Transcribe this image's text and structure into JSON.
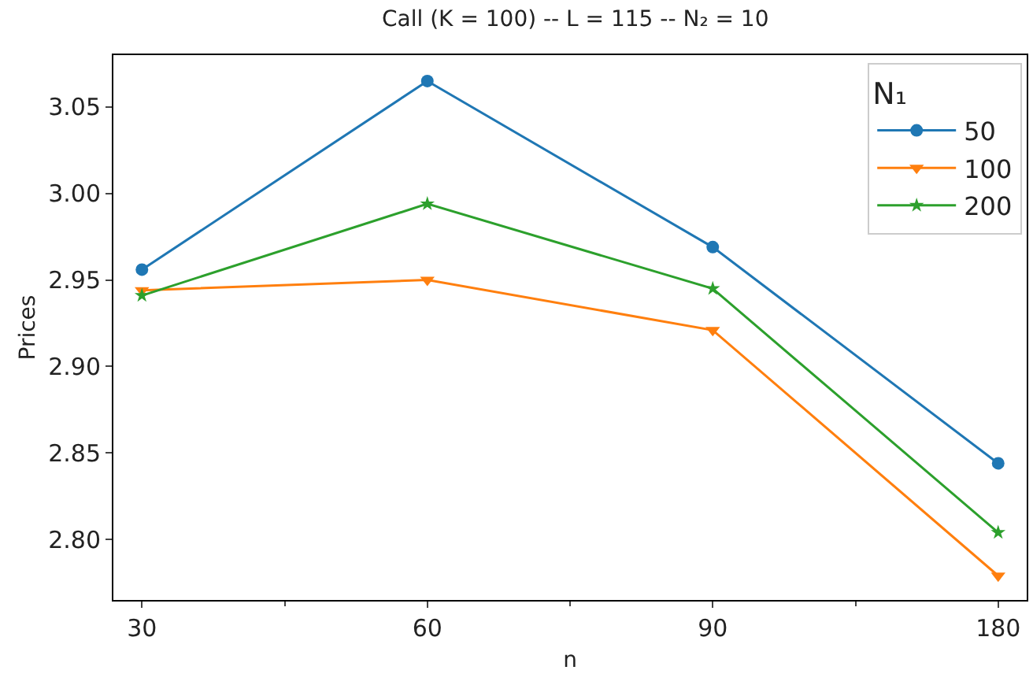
{
  "chart_data": {
    "type": "line",
    "title": "Call (K = 100) -- L = 115 -- N₂ = 10",
    "xlabel": "n",
    "ylabel": "Prices",
    "legend_title": "N₁",
    "categories": [
      "30",
      "60",
      "90",
      "180"
    ],
    "series": [
      {
        "name": "50",
        "color": "#1f77b4",
        "marker": "circle",
        "values": [
          2.956,
          3.065,
          2.969,
          2.844
        ]
      },
      {
        "name": "100",
        "color": "#ff7f0e",
        "marker": "triangle",
        "values": [
          2.944,
          2.95,
          2.921,
          2.779
        ]
      },
      {
        "name": "200",
        "color": "#2ca02c",
        "marker": "star",
        "values": [
          2.941,
          2.994,
          2.945,
          2.804
        ]
      }
    ],
    "ylim": [
      2.765,
      3.08
    ],
    "yticks": [
      {
        "value": 2.8,
        "label": "2.80"
      },
      {
        "value": 2.85,
        "label": "2.85"
      },
      {
        "value": 2.9,
        "label": "2.90"
      },
      {
        "value": 2.95,
        "label": "2.95"
      },
      {
        "value": 3.0,
        "label": "3.00"
      },
      {
        "value": 3.05,
        "label": "3.05"
      }
    ],
    "legend": "top right",
    "line_style": "solid"
  }
}
